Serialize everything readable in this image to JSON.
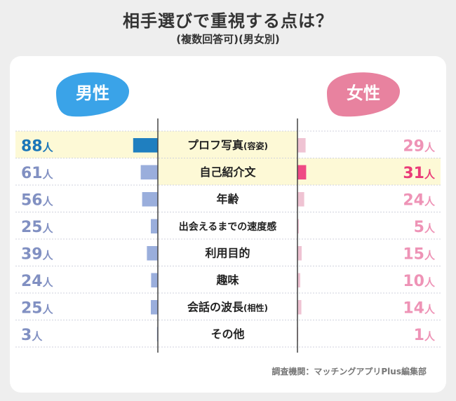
{
  "title": "相手選びで重視する点は？",
  "subtitle": "(複数回答可)(男女別)",
  "credit": "調査機関：マッチングアプリPlus編集部",
  "colors": {
    "male_label_bg": "#3aa3e8",
    "female_label_bg": "#e8829f",
    "male_bar": "#9aaedc",
    "male_bar_highlight": "#1f7fc0",
    "female_bar": "#efc3d3",
    "female_bar_highlight": "#ef4a84",
    "male_text": "#8190c2",
    "male_text_highlight": "#1a76b8",
    "female_text": "#ee93b6",
    "female_text_highlight": "#ea3b78",
    "highlight_row": "#fdf9d6"
  },
  "chart_data": {
    "type": "bar",
    "layout": "butterfly",
    "categories": [
      {
        "main": "プロフ写真",
        "sub": "(容姿)"
      },
      {
        "main": "自己紹介文",
        "sub": ""
      },
      {
        "main": "年齢",
        "sub": ""
      },
      {
        "main": "出会えるまでの速度感",
        "sub": ""
      },
      {
        "main": "利用目的",
        "sub": ""
      },
      {
        "main": "趣味",
        "sub": ""
      },
      {
        "main": "会話の波長",
        "sub": "(相性)"
      },
      {
        "main": "その他",
        "sub": ""
      }
    ],
    "series": [
      {
        "name": "男性",
        "values": [
          88,
          61,
          56,
          25,
          39,
          24,
          25,
          3
        ],
        "highlight_index": 0
      },
      {
        "name": "女性",
        "values": [
          29,
          31,
          24,
          5,
          15,
          10,
          14,
          1
        ],
        "highlight_index": 1
      }
    ],
    "unit": "人",
    "xlim": [
      0,
      100
    ]
  }
}
